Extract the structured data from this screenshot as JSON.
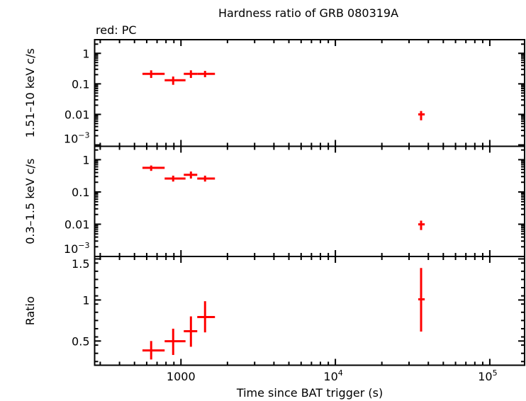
{
  "chart_data": {
    "type": "scatter",
    "title": "Hardness ratio of GRB 080319A",
    "legend_note": "red: PC",
    "xlabel": "Time since BAT trigger (s)",
    "xscale": "log",
    "xlim": [
      276,
      168000
    ],
    "xticks": [
      {
        "value": 1000,
        "label": "1000"
      },
      {
        "value": 10000,
        "label": "10",
        "exp": "4"
      },
      {
        "value": 100000,
        "label": "10",
        "exp": "5"
      }
    ],
    "series_color": "#ff0000",
    "x": [
      641,
      890,
      1160,
      1432,
      35900
    ],
    "x_err_low": [
      563,
      784,
      1043,
      1275,
      34400
    ],
    "x_err_high": [
      784,
      1070,
      1275,
      1660,
      37900
    ],
    "panels": [
      {
        "ylabel": "1.51–10 keV c/s",
        "yscale": "log",
        "ylim": [
          0.0009,
          2.8
        ],
        "yticks": [
          {
            "value": 1,
            "label": "1"
          },
          {
            "value": 0.1,
            "label": "0.1"
          },
          {
            "value": 0.01,
            "label": "0.01"
          },
          {
            "value": 0.001,
            "label": "10",
            "exp": "−3"
          }
        ],
        "y": [
          0.212,
          0.131,
          0.212,
          0.212,
          0.01
        ],
        "y_err_low": [
          0.156,
          0.093,
          0.156,
          0.165,
          0.0064
        ],
        "y_err_high": [
          0.277,
          0.174,
          0.277,
          0.266,
          0.0129
        ]
      },
      {
        "ylabel": "0.3–1.5 keV c/s",
        "yscale": "log",
        "ylim": [
          0.001,
          2.6
        ],
        "yticks": [
          {
            "value": 1,
            "label": "1"
          },
          {
            "value": 0.1,
            "label": "0.1"
          },
          {
            "value": 0.01,
            "label": "0.01"
          },
          {
            "value": 0.001,
            "label": "10",
            "exp": "−3"
          }
        ],
        "y": [
          0.56,
          0.26,
          0.34,
          0.26,
          0.0099
        ],
        "y_err_low": [
          0.45,
          0.21,
          0.26,
          0.21,
          0.0066
        ],
        "y_err_high": [
          0.66,
          0.32,
          0.43,
          0.32,
          0.0129
        ]
      },
      {
        "ylabel": "Ratio",
        "yscale": "linear",
        "ylim": [
          0.205,
          1.53
        ],
        "yticks": [
          {
            "value": 1.5,
            "label": "1.5"
          },
          {
            "value": 1,
            "label": "1"
          },
          {
            "value": 0.5,
            "label": "0.5"
          }
        ],
        "y": [
          0.385,
          0.497,
          0.619,
          0.792,
          1.008
        ],
        "y_err_low": [
          0.275,
          0.33,
          0.43,
          0.605,
          0.615
        ],
        "y_err_high": [
          0.5,
          0.65,
          0.8,
          0.985,
          1.39
        ]
      }
    ]
  }
}
